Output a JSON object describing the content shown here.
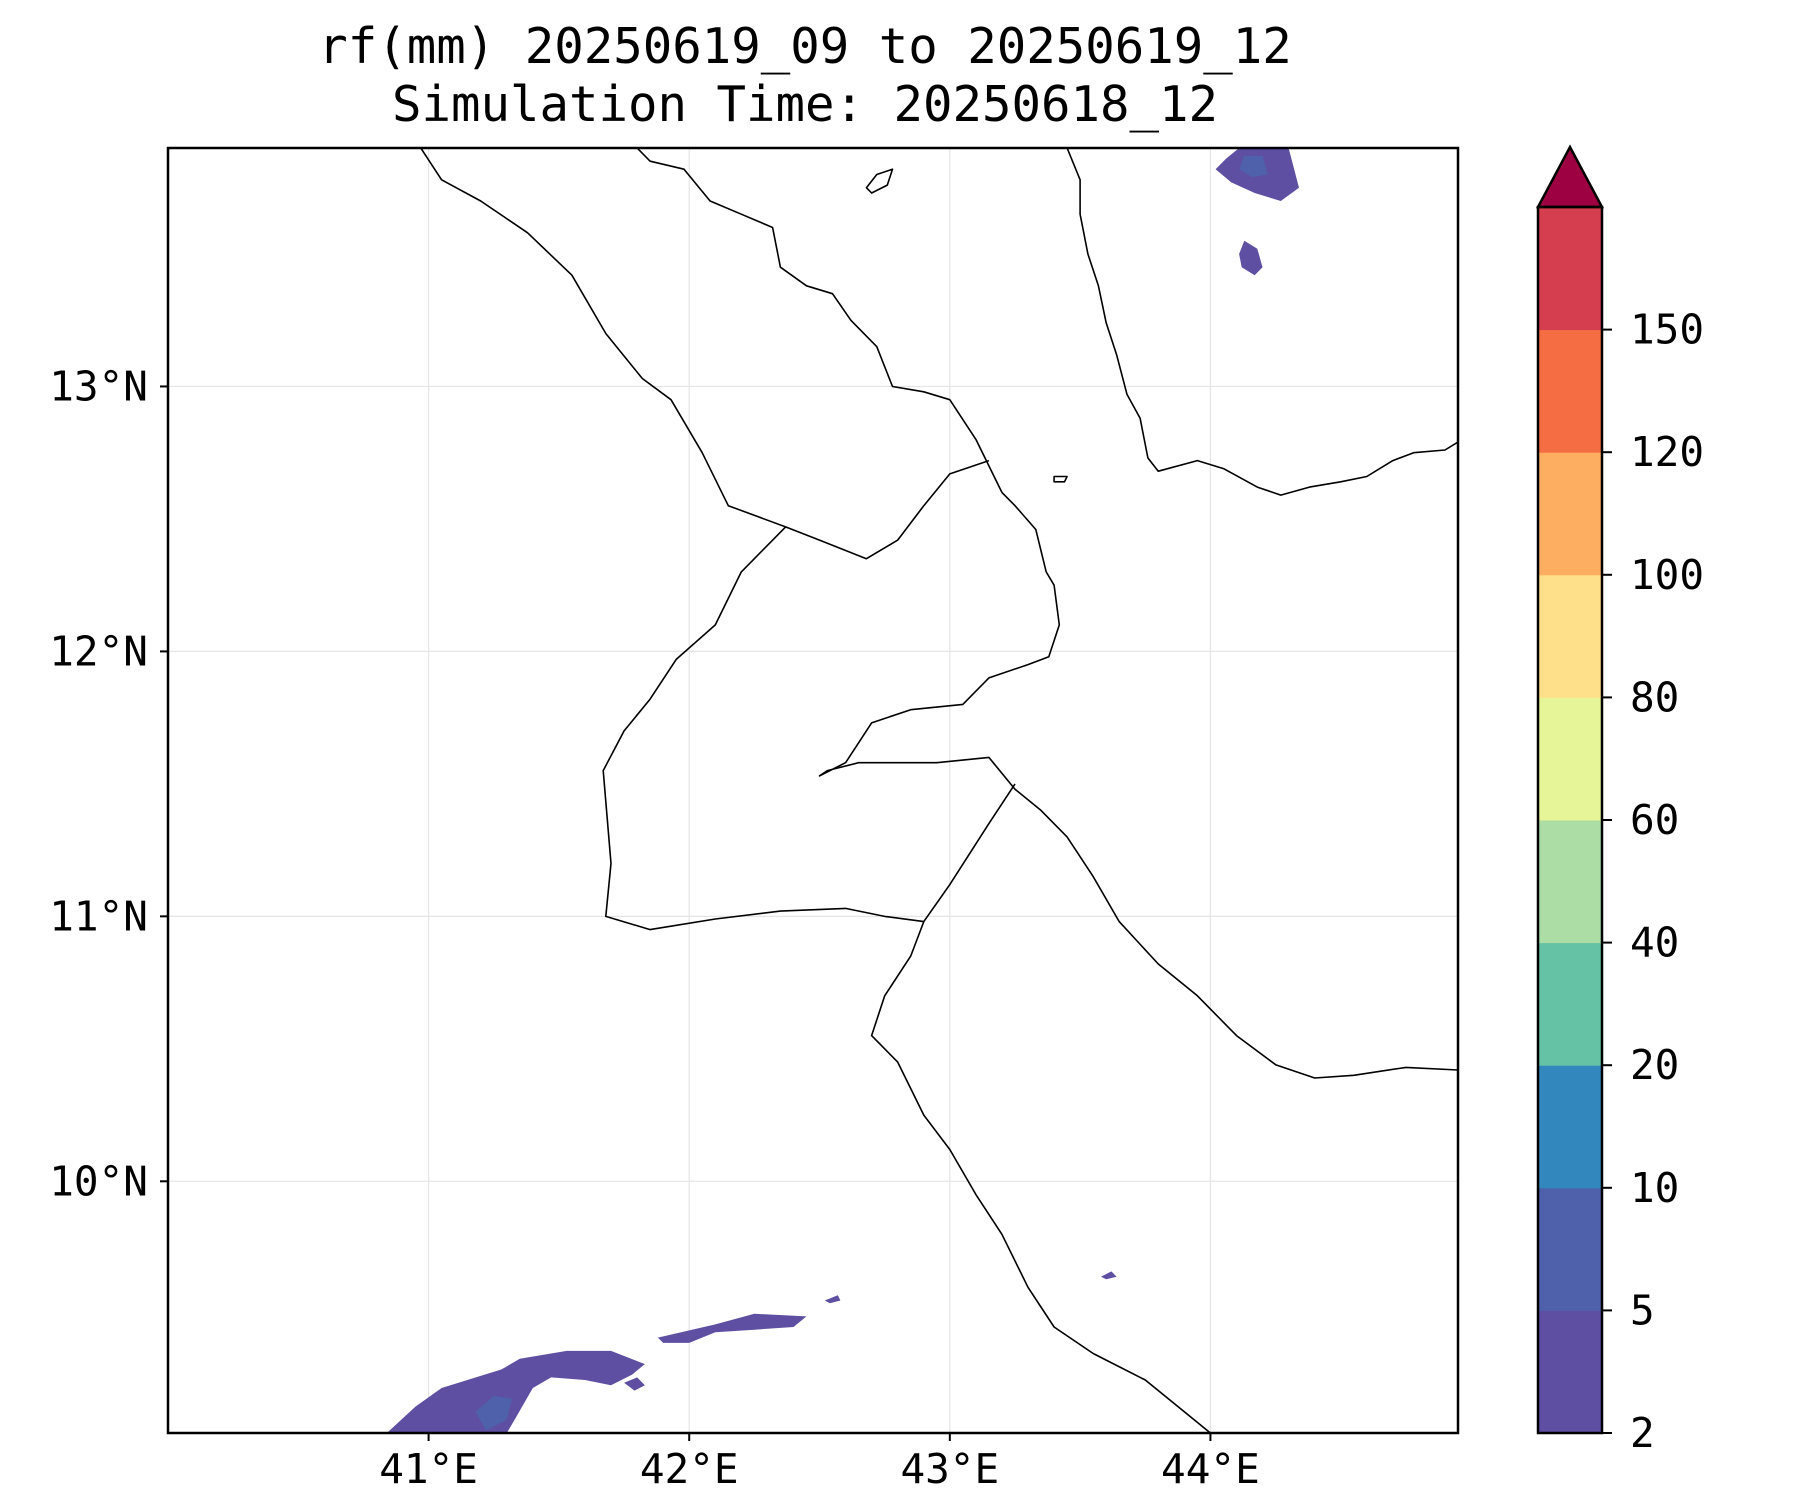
{
  "title": {
    "line1": "rf(mm) 20250619_09 to 20250619_12",
    "line2": "Simulation Time: 20250618_12"
  },
  "map": {
    "lon_range": [
      40.0,
      44.95
    ],
    "lat_range": [
      9.05,
      13.9
    ],
    "lon_ticks": [
      41,
      42,
      43,
      44
    ],
    "lon_tick_labels": [
      "41°E",
      "42°E",
      "43°E",
      "44°E"
    ],
    "lat_ticks": [
      10,
      11,
      12,
      13
    ],
    "lat_tick_labels": [
      "10°N",
      "11°N",
      "12°N",
      "13°N"
    ],
    "grid": true,
    "variable": "rainfall accumulation (mm)",
    "rain_areas": [
      {
        "id": "south-west-main",
        "class_mm": "2-5",
        "lon_lat": [
          [
            40.84,
            9.05
          ],
          [
            40.95,
            9.15
          ],
          [
            41.05,
            9.22
          ],
          [
            41.28,
            9.29
          ],
          [
            41.35,
            9.33
          ],
          [
            41.53,
            9.36
          ],
          [
            41.7,
            9.36
          ],
          [
            41.83,
            9.31
          ],
          [
            41.78,
            9.27
          ],
          [
            41.7,
            9.23
          ],
          [
            41.6,
            9.25
          ],
          [
            41.47,
            9.26
          ],
          [
            41.4,
            9.22
          ],
          [
            41.33,
            9.1
          ],
          [
            41.3,
            9.05
          ]
        ]
      },
      {
        "id": "south-west-core",
        "class_mm": "5-10",
        "lon_lat": [
          [
            41.18,
            9.13
          ],
          [
            41.25,
            9.19
          ],
          [
            41.32,
            9.18
          ],
          [
            41.3,
            9.1
          ],
          [
            41.22,
            9.06
          ]
        ]
      },
      {
        "id": "south-west-strip",
        "class_mm": "2-5",
        "lon_lat": [
          [
            41.88,
            9.41
          ],
          [
            42.1,
            9.46
          ],
          [
            42.25,
            9.5
          ],
          [
            42.45,
            9.49
          ],
          [
            42.4,
            9.45
          ],
          [
            42.25,
            9.44
          ],
          [
            42.1,
            9.43
          ],
          [
            42.0,
            9.39
          ],
          [
            41.9,
            9.39
          ]
        ]
      },
      {
        "id": "south-west-dot-1",
        "class_mm": "2-5",
        "lon_lat": [
          [
            42.52,
            9.55
          ],
          [
            42.57,
            9.57
          ],
          [
            42.58,
            9.55
          ],
          [
            42.54,
            9.54
          ]
        ]
      },
      {
        "id": "south-west-dot-2",
        "class_mm": "2-5",
        "lon_lat": [
          [
            41.75,
            9.24
          ],
          [
            41.8,
            9.26
          ],
          [
            41.83,
            9.23
          ],
          [
            41.79,
            9.21
          ]
        ]
      },
      {
        "id": "south-dot",
        "class_mm": "2-5",
        "lon_lat": [
          [
            43.58,
            9.64
          ],
          [
            43.62,
            9.66
          ],
          [
            43.64,
            9.64
          ],
          [
            43.6,
            9.63
          ]
        ]
      },
      {
        "id": "north-east-main",
        "class_mm": "2-5",
        "lon_lat": [
          [
            44.11,
            13.9
          ],
          [
            44.3,
            13.9
          ],
          [
            44.34,
            13.75
          ],
          [
            44.27,
            13.7
          ],
          [
            44.17,
            13.73
          ],
          [
            44.08,
            13.77
          ],
          [
            44.02,
            13.82
          ],
          [
            44.06,
            13.86
          ]
        ]
      },
      {
        "id": "north-east-core",
        "class_mm": "5-10",
        "lon_lat": [
          [
            44.13,
            13.87
          ],
          [
            44.2,
            13.87
          ],
          [
            44.22,
            13.8
          ],
          [
            44.16,
            13.79
          ],
          [
            44.11,
            13.82
          ]
        ]
      },
      {
        "id": "north-east-blob",
        "class_mm": "2-5",
        "lon_lat": [
          [
            44.13,
            13.55
          ],
          [
            44.18,
            13.52
          ],
          [
            44.2,
            13.45
          ],
          [
            44.17,
            13.42
          ],
          [
            44.12,
            13.45
          ],
          [
            44.11,
            13.5
          ]
        ]
      }
    ],
    "lines": [
      {
        "id": "coast-yemen",
        "kind": "coastline",
        "lon_lat": [
          [
            43.45,
            13.9
          ],
          [
            43.5,
            13.78
          ],
          [
            43.5,
            13.65
          ],
          [
            43.53,
            13.5
          ],
          [
            43.57,
            13.38
          ],
          [
            43.6,
            13.24
          ],
          [
            43.64,
            13.12
          ],
          [
            43.68,
            12.97
          ],
          [
            43.73,
            12.88
          ],
          [
            43.76,
            12.73
          ],
          [
            43.8,
            12.68
          ],
          [
            43.95,
            12.72
          ],
          [
            44.05,
            12.69
          ],
          [
            44.18,
            12.62
          ],
          [
            44.27,
            12.59
          ],
          [
            44.38,
            12.62
          ],
          [
            44.5,
            12.64
          ],
          [
            44.6,
            12.66
          ],
          [
            44.7,
            12.72
          ],
          [
            44.78,
            12.75
          ],
          [
            44.9,
            12.76
          ],
          [
            44.95,
            12.79
          ]
        ]
      },
      {
        "id": "coast-eritrea",
        "kind": "coastline",
        "lon_lat": [
          [
            41.8,
            13.9
          ],
          [
            41.85,
            13.85
          ],
          [
            41.98,
            13.82
          ],
          [
            42.08,
            13.7
          ],
          [
            42.2,
            13.65
          ],
          [
            42.32,
            13.6
          ],
          [
            42.35,
            13.45
          ],
          [
            42.45,
            13.38
          ],
          [
            42.55,
            13.35
          ],
          [
            42.62,
            13.25
          ],
          [
            42.72,
            13.15
          ],
          [
            42.78,
            13.0
          ],
          [
            42.9,
            12.98
          ],
          [
            43.0,
            12.95
          ],
          [
            43.1,
            12.8
          ],
          [
            43.2,
            12.6
          ]
        ]
      },
      {
        "id": "coast-djibouti",
        "kind": "coastline",
        "lon_lat": [
          [
            43.2,
            12.6
          ],
          [
            43.25,
            12.55
          ],
          [
            43.33,
            12.46
          ],
          [
            43.37,
            12.3
          ],
          [
            43.4,
            12.25
          ],
          [
            43.42,
            12.1
          ],
          [
            43.38,
            11.98
          ],
          [
            43.3,
            11.95
          ],
          [
            43.15,
            11.9
          ],
          [
            43.05,
            11.8
          ],
          [
            42.85,
            11.78
          ],
          [
            42.7,
            11.73
          ],
          [
            42.6,
            11.58
          ],
          [
            42.5,
            11.53
          ],
          [
            42.53,
            11.55
          ],
          [
            42.65,
            11.58
          ],
          [
            42.8,
            11.58
          ],
          [
            42.95,
            11.58
          ],
          [
            43.15,
            11.6
          ],
          [
            43.25,
            11.48
          ],
          [
            43.35,
            11.4
          ],
          [
            43.45,
            11.3
          ],
          [
            43.55,
            11.15
          ],
          [
            43.65,
            10.98
          ],
          [
            43.8,
            10.82
          ],
          [
            43.95,
            10.7
          ],
          [
            44.1,
            10.55
          ],
          [
            44.25,
            10.44
          ],
          [
            44.4,
            10.39
          ],
          [
            44.55,
            10.4
          ],
          [
            44.75,
            10.43
          ],
          [
            44.95,
            10.42
          ]
        ]
      },
      {
        "id": "border-eritrea-ethiopia",
        "kind": "border",
        "lon_lat": [
          [
            40.97,
            13.9
          ],
          [
            41.05,
            13.78
          ],
          [
            41.2,
            13.7
          ],
          [
            41.38,
            13.58
          ],
          [
            41.55,
            13.42
          ],
          [
            41.68,
            13.2
          ],
          [
            41.82,
            13.03
          ],
          [
            41.93,
            12.95
          ],
          [
            42.05,
            12.75
          ],
          [
            42.15,
            12.55
          ],
          [
            42.37,
            12.47
          ]
        ]
      },
      {
        "id": "border-djibouti-west",
        "kind": "border",
        "lon_lat": [
          [
            42.37,
            12.47
          ],
          [
            42.3,
            12.4
          ],
          [
            42.2,
            12.3
          ],
          [
            42.1,
            12.1
          ],
          [
            41.95,
            11.97
          ],
          [
            41.85,
            11.82
          ],
          [
            41.75,
            11.7
          ],
          [
            41.67,
            11.55
          ],
          [
            41.7,
            11.2
          ],
          [
            41.68,
            11.0
          ],
          [
            41.85,
            10.95
          ],
          [
            42.1,
            10.99
          ],
          [
            42.35,
            11.02
          ],
          [
            42.6,
            11.03
          ],
          [
            42.75,
            11.0
          ],
          [
            42.9,
            10.98
          ]
        ]
      },
      {
        "id": "border-djibouti-north",
        "kind": "border",
        "lon_lat": [
          [
            42.37,
            12.47
          ],
          [
            42.5,
            12.42
          ],
          [
            42.68,
            12.35
          ],
          [
            42.8,
            12.42
          ],
          [
            42.9,
            12.55
          ],
          [
            43.0,
            12.67
          ],
          [
            43.15,
            12.72
          ]
        ]
      },
      {
        "id": "border-djibouti-somaliland",
        "kind": "border",
        "lon_lat": [
          [
            42.9,
            10.98
          ],
          [
            43.0,
            11.12
          ],
          [
            43.15,
            11.35
          ],
          [
            43.25,
            11.5
          ]
        ]
      },
      {
        "id": "border-ethiopia-somaliland",
        "kind": "border",
        "lon_lat": [
          [
            42.9,
            10.98
          ],
          [
            42.85,
            10.85
          ],
          [
            42.75,
            10.7
          ],
          [
            42.7,
            10.55
          ],
          [
            42.8,
            10.45
          ],
          [
            42.9,
            10.25
          ],
          [
            43.0,
            10.12
          ],
          [
            43.1,
            9.95
          ],
          [
            43.2,
            9.8
          ],
          [
            43.3,
            9.6
          ],
          [
            43.4,
            9.45
          ],
          [
            43.55,
            9.35
          ],
          [
            43.75,
            9.25
          ],
          [
            44.0,
            9.05
          ]
        ]
      },
      {
        "id": "island-dahlak",
        "kind": "coastline",
        "lon_lat": [
          [
            42.68,
            13.75
          ],
          [
            42.72,
            13.8
          ],
          [
            42.78,
            13.82
          ],
          [
            42.76,
            13.76
          ],
          [
            42.7,
            13.73
          ]
        ]
      },
      {
        "id": "island-perim",
        "kind": "coastline",
        "lon_lat": [
          [
            43.4,
            12.66
          ],
          [
            43.45,
            12.66
          ],
          [
            43.44,
            12.64
          ],
          [
            43.4,
            12.64
          ]
        ]
      }
    ]
  },
  "colorbar": {
    "levels": [
      2,
      5,
      10,
      20,
      40,
      60,
      80,
      100,
      120,
      150
    ],
    "tick_labels": [
      "2",
      "5",
      "10",
      "20",
      "40",
      "60",
      "80",
      "100",
      "120",
      "150"
    ],
    "colors": [
      "#5e4fa2",
      "#4f61aa",
      "#3288bd",
      "#66c2a5",
      "#abdda4",
      "#e6f598",
      "#fee08b",
      "#fdae61",
      "#f46d43",
      "#d53e4f"
    ],
    "extend_color": "#9e0142",
    "extend": "max"
  },
  "styles": {
    "coastline_color": "#000000",
    "border_color": "#000000",
    "grid_color": "#e5e5e5",
    "frame_color": "#000000"
  }
}
